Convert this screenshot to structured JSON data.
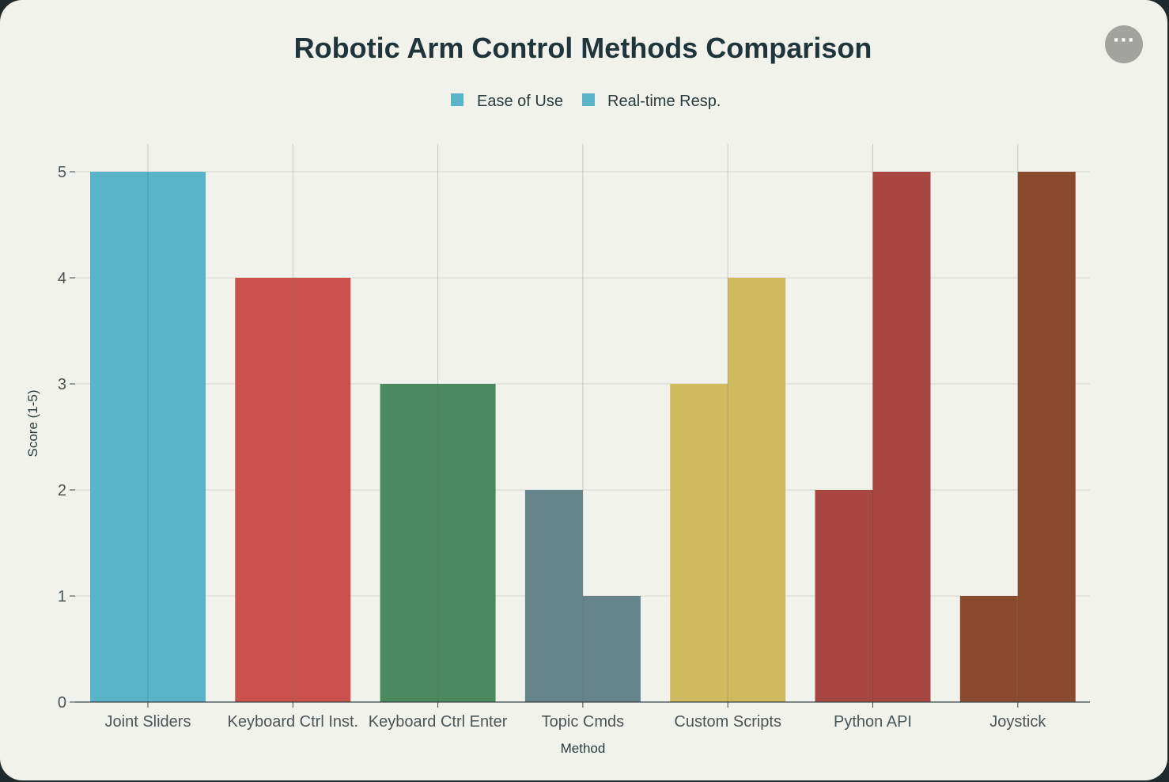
{
  "menu": {
    "icon": "more-horizontal-icon",
    "label": "···"
  },
  "chart_data": {
    "type": "bar",
    "title": "Robotic Arm Control Methods Comparison",
    "xlabel": "Method",
    "ylabel": "Score (1-5)",
    "ylim": [
      0,
      5
    ],
    "yticks": [
      "0",
      "1",
      "2",
      "3",
      "4",
      "5"
    ],
    "grid": true,
    "legend_position": "top-center",
    "categories": [
      "Joint Sliders",
      "Keyboard Ctrl Inst.",
      "Keyboard Ctrl Enter",
      "Topic Cmds",
      "Custom Scripts",
      "Python API",
      "Joystick"
    ],
    "colors": [
      "#5ab4c9",
      "#cb514c",
      "#4b8a5e",
      "#66848b",
      "#cfba5e",
      "#a84641",
      "#8a4a2d"
    ],
    "series": [
      {
        "name": "Ease of Use",
        "values": [
          5,
          4,
          3,
          2,
          3,
          2,
          1
        ]
      },
      {
        "name": "Real-time Resp.",
        "values": [
          5,
          4,
          3,
          1,
          4,
          5,
          5
        ]
      }
    ]
  }
}
